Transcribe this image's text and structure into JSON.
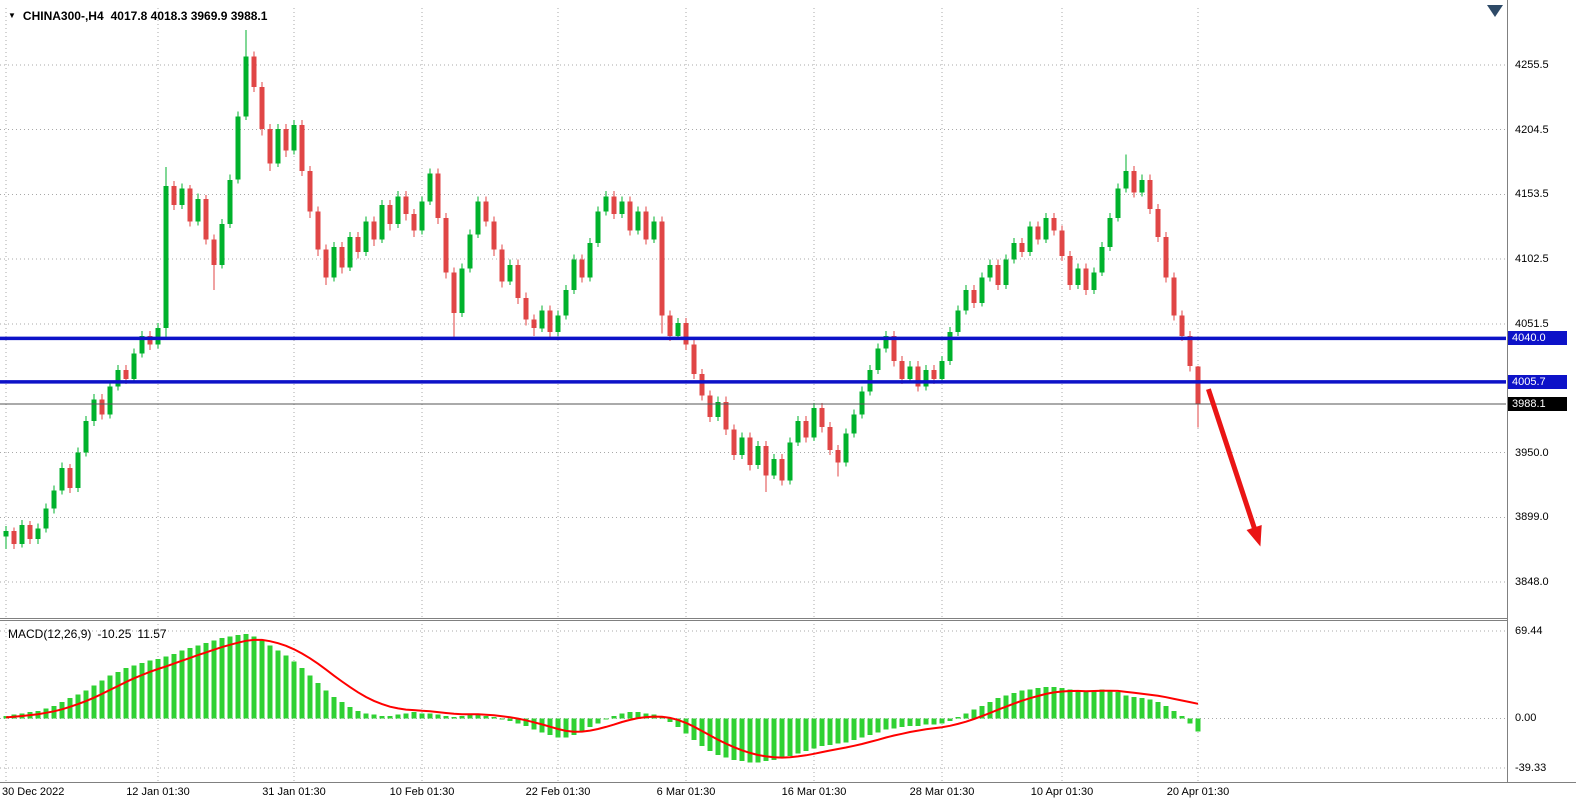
{
  "icons": {
    "symbol_marker": "▼",
    "shift_marker": "down-triangle"
  },
  "colors": {
    "background": "#ffffff",
    "grid": "#a8a8a8",
    "border": "#808080",
    "candle_up": "#00b22c",
    "candle_down": "#e04646",
    "macd_histogram": "#2fd133",
    "macd_signal": "#ff0000",
    "level_line": "#0d12c8",
    "price_line": "#555555",
    "current_badge_bg": "#000000",
    "arrow": "#ea1515",
    "text": "#000000",
    "shift_marker": "#2e4a67"
  },
  "price_scale": {
    "ticks": [
      {
        "label": "4255.5",
        "value": 4255.5
      },
      {
        "label": "4204.5",
        "value": 4204.5
      },
      {
        "label": "4153.5",
        "value": 4153.5
      },
      {
        "label": "4102.5",
        "value": 4102.5
      },
      {
        "label": "4051.5",
        "value": 4051.5
      },
      {
        "label": "3950.0",
        "value": 3950.0
      },
      {
        "label": "3899.0",
        "value": 3899.0
      },
      {
        "label": "3848.0",
        "value": 3848.0
      }
    ]
  },
  "time_axis": {
    "labels": [
      {
        "text": "30 Dec 2022",
        "index": 0
      },
      {
        "text": "12 Jan 01:30",
        "index": 19
      },
      {
        "text": "31 Jan 01:30",
        "index": 36
      },
      {
        "text": "10 Feb 01:30",
        "index": 52
      },
      {
        "text": "22 Feb 01:30",
        "index": 69
      },
      {
        "text": "6 Mar 01:30",
        "index": 85
      },
      {
        "text": "16 Mar 01:30",
        "index": 101
      },
      {
        "text": "28 Mar 01:30",
        "index": 117
      },
      {
        "text": "10 Apr 01:30",
        "index": 132
      },
      {
        "text": "20 Apr 01:30",
        "index": 149
      }
    ]
  },
  "chart_data": [
    {
      "type": "candlestick",
      "title": "CHINA300-,H4",
      "ohlc_text": "4017.8 4018.3 3969.9 3988.1",
      "ylim": [
        3819.6,
        4300.4
      ],
      "hlines": [
        {
          "label": "4040.0",
          "value": 4040.0
        },
        {
          "label": "4005.7",
          "value": 4005.7
        }
      ],
      "current_price": {
        "label": "3988.1",
        "value": 3988.1
      },
      "annotations": [
        {
          "type": "arrow",
          "from": {
            "index": 150.3,
            "price": 4000
          },
          "to": {
            "index": 156.8,
            "price": 3876
          }
        }
      ],
      "candles": [
        [
          3884,
          3892,
          3874,
          3888
        ],
        [
          3888,
          3891,
          3874,
          3878
        ],
        [
          3878,
          3897,
          3875,
          3893
        ],
        [
          3893,
          3896,
          3878,
          3882
        ],
        [
          3882,
          3894,
          3878,
          3890
        ],
        [
          3890,
          3910,
          3887,
          3906
        ],
        [
          3906,
          3924,
          3902,
          3920
        ],
        [
          3920,
          3942,
          3917,
          3938
        ],
        [
          3938,
          3941,
          3918,
          3922
        ],
        [
          3922,
          3954,
          3919,
          3950
        ],
        [
          3950,
          3979,
          3947,
          3975
        ],
        [
          3975,
          3996,
          3971,
          3992
        ],
        [
          3992,
          3996,
          3976,
          3980
        ],
        [
          3980,
          4006,
          3977,
          4002
        ],
        [
          4002,
          4019,
          3999,
          4015
        ],
        [
          4015,
          4019,
          4004,
          4008
        ],
        [
          4008,
          4032,
          4005,
          4028
        ],
        [
          4028,
          4046,
          4025,
          4042
        ],
        [
          4042,
          4046,
          4031,
          4035
        ],
        [
          4035,
          4052,
          4032,
          4048
        ],
        [
          4048,
          4175,
          4040,
          4160
        ],
        [
          4160,
          4164,
          4141,
          4145
        ],
        [
          4145,
          4162,
          4142,
          4158
        ],
        [
          4158,
          4161,
          4128,
          4132
        ],
        [
          4132,
          4154,
          4129,
          4150
        ],
        [
          4150,
          4153,
          4114,
          4118
        ],
        [
          4118,
          4122,
          4078,
          4098
        ],
        [
          4098,
          4134,
          4095,
          4130
        ],
        [
          4130,
          4169,
          4127,
          4165
        ],
        [
          4165,
          4219,
          4162,
          4215
        ],
        [
          4215,
          4283,
          4212,
          4262
        ],
        [
          4262,
          4266,
          4234,
          4238
        ],
        [
          4238,
          4242,
          4200,
          4205
        ],
        [
          4205,
          4209,
          4172,
          4178
        ],
        [
          4178,
          4209,
          4175,
          4205
        ],
        [
          4205,
          4209,
          4183,
          4188
        ],
        [
          4188,
          4212,
          4185,
          4208
        ],
        [
          4208,
          4212,
          4168,
          4172
        ],
        [
          4172,
          4176,
          4135,
          4140
        ],
        [
          4140,
          4144,
          4105,
          4110
        ],
        [
          4110,
          4114,
          4082,
          4088
        ],
        [
          4088,
          4116,
          4085,
          4112
        ],
        [
          4112,
          4116,
          4091,
          4096
        ],
        [
          4096,
          4124,
          4093,
          4120
        ],
        [
          4120,
          4124,
          4103,
          4108
        ],
        [
          4108,
          4136,
          4105,
          4132
        ],
        [
          4132,
          4136,
          4113,
          4118
        ],
        [
          4118,
          4149,
          4115,
          4145
        ],
        [
          4145,
          4149,
          4125,
          4130
        ],
        [
          4130,
          4156,
          4127,
          4152
        ],
        [
          4152,
          4156,
          4133,
          4138
        ],
        [
          4138,
          4142,
          4120,
          4125
        ],
        [
          4125,
          4152,
          4122,
          4148
        ],
        [
          4148,
          4174,
          4145,
          4170
        ],
        [
          4170,
          4174,
          4130,
          4135
        ],
        [
          4135,
          4139,
          4087,
          4092
        ],
        [
          4092,
          4096,
          4040,
          4060
        ],
        [
          4060,
          4099,
          4057,
          4095
        ],
        [
          4095,
          4126,
          4092,
          4122
        ],
        [
          4122,
          4152,
          4119,
          4148
        ],
        [
          4148,
          4152,
          4128,
          4132
        ],
        [
          4132,
          4136,
          4105,
          4110
        ],
        [
          4110,
          4114,
          4080,
          4085
        ],
        [
          4085,
          4102,
          4082,
          4098
        ],
        [
          4098,
          4102,
          4067,
          4072
        ],
        [
          4072,
          4076,
          4050,
          4055
        ],
        [
          4055,
          4059,
          4042,
          4048
        ],
        [
          4048,
          4066,
          4045,
          4062
        ],
        [
          4062,
          4066,
          4041,
          4045
        ],
        [
          4045,
          4062,
          4042,
          4058
        ],
        [
          4058,
          4082,
          4055,
          4078
        ],
        [
          4078,
          4106,
          4075,
          4102
        ],
        [
          4102,
          4106,
          4084,
          4088
        ],
        [
          4088,
          4119,
          4085,
          4115
        ],
        [
          4115,
          4144,
          4112,
          4140
        ],
        [
          4140,
          4156,
          4137,
          4152
        ],
        [
          4152,
          4156,
          4134,
          4138
        ],
        [
          4138,
          4152,
          4135,
          4148
        ],
        [
          4148,
          4152,
          4121,
          4125
        ],
        [
          4125,
          4144,
          4122,
          4140
        ],
        [
          4140,
          4144,
          4114,
          4118
        ],
        [
          4118,
          4136,
          4115,
          4132
        ],
        [
          4132,
          4136,
          4044,
          4058
        ],
        [
          4058,
          4062,
          4038,
          4042
        ],
        [
          4042,
          4056,
          4039,
          4052
        ],
        [
          4052,
          4056,
          4031,
          4035
        ],
        [
          4035,
          4039,
          4008,
          4012
        ],
        [
          4012,
          4016,
          3991,
          3995
        ],
        [
          3995,
          3999,
          3974,
          3978
        ],
        [
          3978,
          3994,
          3975,
          3990
        ],
        [
          3990,
          3994,
          3964,
          3968
        ],
        [
          3968,
          3972,
          3944,
          3948
        ],
        [
          3948,
          3966,
          3945,
          3962
        ],
        [
          3962,
          3966,
          3936,
          3940
        ],
        [
          3940,
          3959,
          3937,
          3955
        ],
        [
          3955,
          3959,
          3919,
          3932
        ],
        [
          3932,
          3949,
          3929,
          3945
        ],
        [
          3945,
          3949,
          3924,
          3928
        ],
        [
          3928,
          3962,
          3925,
          3958
        ],
        [
          3958,
          3979,
          3955,
          3975
        ],
        [
          3975,
          3979,
          3958,
          3962
        ],
        [
          3962,
          3989,
          3959,
          3985
        ],
        [
          3985,
          3989,
          3966,
          3970
        ],
        [
          3970,
          3974,
          3948,
          3952
        ],
        [
          3952,
          3956,
          3931,
          3942
        ],
        [
          3942,
          3969,
          3939,
          3965
        ],
        [
          3965,
          3984,
          3962,
          3980
        ],
        [
          3980,
          4002,
          3977,
          3998
        ],
        [
          3998,
          4019,
          3995,
          4015
        ],
        [
          4015,
          4036,
          4012,
          4032
        ],
        [
          4032,
          4046,
          4029,
          4042
        ],
        [
          4042,
          4046,
          4018,
          4022
        ],
        [
          4022,
          4026,
          4004,
          4008
        ],
        [
          4008,
          4022,
          4005,
          4018
        ],
        [
          4018,
          4022,
          3998,
          4002
        ],
        [
          4002,
          4019,
          3999,
          4015
        ],
        [
          4015,
          4019,
          4004,
          4008
        ],
        [
          4008,
          4026,
          4005,
          4022
        ],
        [
          4022,
          4049,
          4019,
          4045
        ],
        [
          4045,
          4066,
          4042,
          4062
        ],
        [
          4062,
          4082,
          4059,
          4078
        ],
        [
          4078,
          4082,
          4064,
          4068
        ],
        [
          4068,
          4092,
          4065,
          4088
        ],
        [
          4088,
          4102,
          4085,
          4098
        ],
        [
          4098,
          4102,
          4078,
          4082
        ],
        [
          4082,
          4106,
          4079,
          4102
        ],
        [
          4102,
          4119,
          4099,
          4115
        ],
        [
          4115,
          4119,
          4104,
          4108
        ],
        [
          4108,
          4132,
          4105,
          4128
        ],
        [
          4128,
          4132,
          4114,
          4118
        ],
        [
          4118,
          4139,
          4115,
          4135
        ],
        [
          4135,
          4139,
          4121,
          4125
        ],
        [
          4125,
          4129,
          4101,
          4105
        ],
        [
          4105,
          4109,
          4078,
          4082
        ],
        [
          4082,
          4099,
          4079,
          4095
        ],
        [
          4095,
          4099,
          4074,
          4078
        ],
        [
          4078,
          4096,
          4075,
          4092
        ],
        [
          4092,
          4116,
          4089,
          4112
        ],
        [
          4112,
          4139,
          4109,
          4135
        ],
        [
          4135,
          4162,
          4132,
          4158
        ],
        [
          4158,
          4185,
          4155,
          4172
        ],
        [
          4172,
          4176,
          4151,
          4155
        ],
        [
          4155,
          4169,
          4152,
          4165
        ],
        [
          4165,
          4169,
          4138,
          4142
        ],
        [
          4142,
          4146,
          4116,
          4120
        ],
        [
          4120,
          4124,
          4084,
          4088
        ],
        [
          4088,
          4092,
          4054,
          4058
        ],
        [
          4058,
          4062,
          4038,
          4042
        ],
        [
          4042,
          4046,
          4014,
          4018
        ],
        [
          4017.8,
          4018.3,
          3969.9,
          3988.1
        ]
      ]
    },
    {
      "type": "macd",
      "label": "MACD(12,26,9)",
      "current_macd": "-10.25",
      "current_signal": "11.57",
      "y_ticks": [
        {
          "label": "69.44",
          "value": 69.44
        },
        {
          "label": "0.00",
          "value": 0
        },
        {
          "label": "-39.33",
          "value": -39.33
        }
      ],
      "ylim": [
        -50.5,
        77.3
      ],
      "histogram": [
        2,
        3,
        4,
        5,
        6,
        8,
        10,
        13,
        16,
        19,
        22,
        26,
        30,
        34,
        37,
        40,
        42,
        44,
        46,
        47,
        49,
        51,
        54,
        56,
        58,
        60,
        62,
        64,
        65,
        66,
        67,
        65,
        62,
        58,
        54,
        50,
        45,
        40,
        34,
        28,
        22,
        17,
        13,
        9,
        6,
        4,
        3,
        2,
        2,
        3,
        4,
        5,
        4,
        4,
        3,
        2,
        1,
        2,
        3,
        3,
        2,
        1,
        -1,
        -2,
        -4,
        -6,
        -9,
        -11,
        -13,
        -15,
        -15,
        -13,
        -10,
        -7,
        -4,
        -1,
        2,
        4,
        5,
        5,
        4,
        3,
        1,
        -3,
        -7,
        -12,
        -17,
        -22,
        -26,
        -29,
        -31,
        -33,
        -34,
        -35,
        -35,
        -34,
        -33,
        -32,
        -30,
        -28,
        -26,
        -24,
        -22,
        -21,
        -20,
        -19,
        -17,
        -15,
        -13,
        -11,
        -9,
        -8,
        -7,
        -6,
        -6,
        -5,
        -5,
        -4,
        -2,
        1,
        4,
        7,
        10,
        13,
        16,
        18,
        20,
        22,
        23,
        24,
        25,
        25,
        24,
        23,
        22,
        21,
        22,
        23,
        22,
        21,
        18,
        17,
        16,
        15,
        13,
        10,
        6,
        2,
        -4,
        -10.25
      ],
      "signal": [
        0.8,
        1.3,
        1.9,
        2.6,
        3.3,
        4.4,
        5.6,
        7.2,
        9.2,
        11.3,
        13.7,
        16.4,
        19.4,
        22.6,
        25.7,
        28.9,
        31.8,
        34.4,
        37.0,
        39.2,
        41.3,
        43.5,
        45.8,
        48.0,
        50.2,
        52.4,
        54.5,
        56.6,
        58.4,
        60.1,
        61.6,
        62.3,
        62.3,
        61.3,
        59.7,
        57.6,
        54.8,
        51.5,
        47.7,
        43.4,
        38.7,
        33.9,
        29.3,
        24.8,
        20.7,
        17.0,
        13.9,
        11.3,
        9.3,
        7.9,
        7.0,
        6.6,
        6.0,
        5.6,
        5.0,
        4.3,
        3.6,
        3.2,
        3.2,
        3.2,
        2.9,
        2.5,
        1.7,
        0.9,
        -0.2,
        -1.5,
        -3.1,
        -4.8,
        -6.6,
        -8.4,
        -9.9,
        -10.6,
        -10.5,
        -9.7,
        -8.4,
        -6.8,
        -4.9,
        -2.9,
        -1.2,
        0.2,
        1.0,
        1.4,
        1.3,
        0.4,
        -1.2,
        -3.6,
        -6.6,
        -10.0,
        -13.5,
        -16.9,
        -20.0,
        -22.9,
        -25.3,
        -27.4,
        -29.1,
        -30.2,
        -30.8,
        -31.1,
        -30.8,
        -30.2,
        -29.3,
        -28.1,
        -26.8,
        -25.5,
        -24.3,
        -23.1,
        -21.8,
        -20.3,
        -18.7,
        -17.0,
        -15.2,
        -13.6,
        -12.2,
        -10.8,
        -9.7,
        -8.7,
        -7.9,
        -7.0,
        -5.9,
        -4.4,
        -2.6,
        -0.5,
        1.8,
        4.3,
        6.9,
        9.3,
        11.7,
        14.0,
        16.0,
        17.8,
        19.4,
        20.6,
        21.3,
        21.7,
        21.8,
        21.6,
        21.7,
        22.0,
        22.0,
        21.8,
        21.0,
        20.3,
        19.6,
        18.8,
        17.9,
        16.8,
        15.5,
        14.2,
        12.9,
        11.6
      ]
    }
  ]
}
